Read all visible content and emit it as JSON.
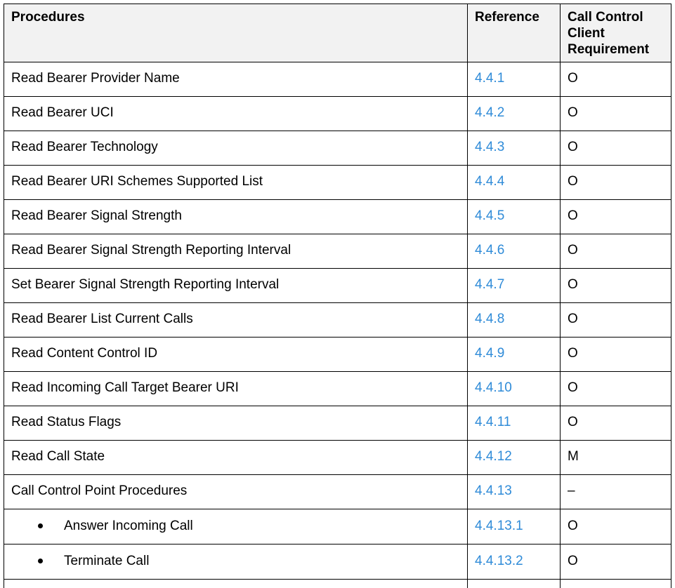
{
  "table": {
    "headers": {
      "procedures": "Procedures",
      "reference": "Reference",
      "requirement": "Call Control Client Requirement"
    },
    "rows": [
      {
        "procedure": "Read Bearer Provider Name",
        "reference": "4.4.1",
        "requirement": "O"
      },
      {
        "procedure": "Read Bearer UCI",
        "reference": "4.4.2",
        "requirement": "O"
      },
      {
        "procedure": "Read Bearer Technology",
        "reference": "4.4.3",
        "requirement": "O"
      },
      {
        "procedure": "Read Bearer URI Schemes Supported List",
        "reference": "4.4.4",
        "requirement": "O"
      },
      {
        "procedure": "Read Bearer Signal Strength",
        "reference": "4.4.5",
        "requirement": "O"
      },
      {
        "procedure": "Read Bearer Signal Strength Reporting Interval",
        "reference": "4.4.6",
        "requirement": "O"
      },
      {
        "procedure": "Set Bearer Signal Strength Reporting Interval",
        "reference": "4.4.7",
        "requirement": "O"
      },
      {
        "procedure": "Read Bearer List Current Calls",
        "reference": "4.4.8",
        "requirement": "O"
      },
      {
        "procedure": "Read Content Control ID",
        "reference": "4.4.9",
        "requirement": "O"
      },
      {
        "procedure": "Read Incoming Call Target Bearer URI",
        "reference": "4.4.10",
        "requirement": "O"
      },
      {
        "procedure": "Read Status Flags",
        "reference": "4.4.11",
        "requirement": "O"
      },
      {
        "procedure": "Read Call State",
        "reference": "4.4.12",
        "requirement": "M"
      },
      {
        "procedure": "Call Control Point Procedures",
        "reference": "4.4.13",
        "requirement": "–"
      },
      {
        "procedure": "Answer Incoming Call",
        "reference": "4.4.13.1",
        "requirement": "O",
        "bullet": true
      },
      {
        "procedure": "Terminate Call",
        "reference": "4.4.13.2",
        "requirement": "O",
        "bullet": true
      }
    ]
  },
  "colors": {
    "link": "#2f8bd8",
    "header_bg": "#f2f2f2",
    "border": "#000000"
  }
}
